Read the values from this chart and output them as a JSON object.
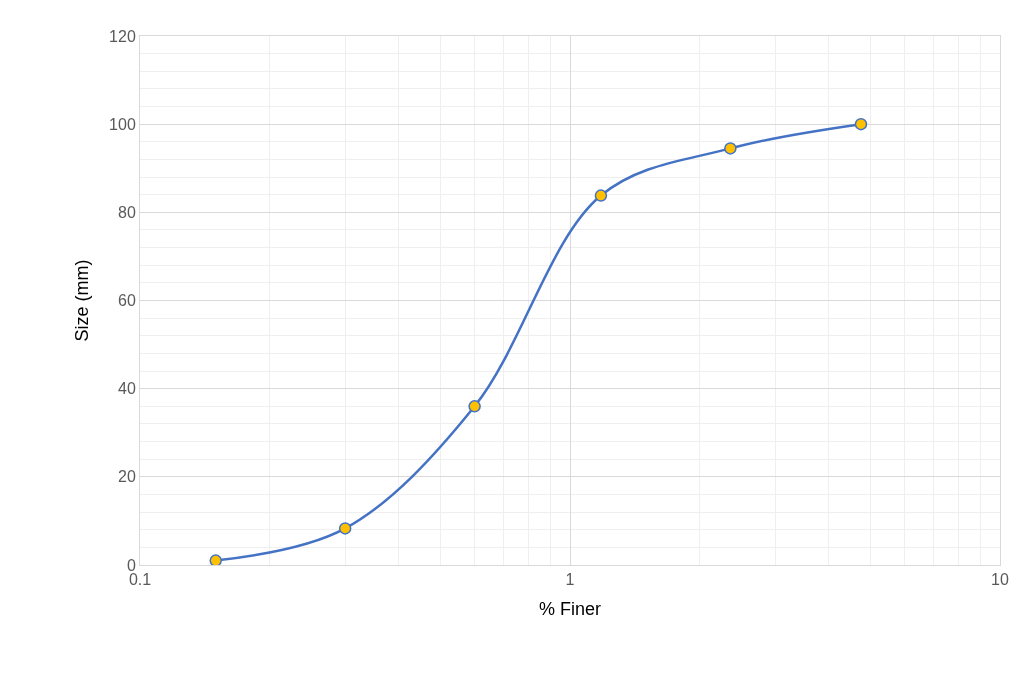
{
  "chart_data": {
    "type": "line",
    "xlabel": "% Finer",
    "ylabel": "Size (mm)",
    "log": "x",
    "grid": true,
    "marker": "circle",
    "line_style": "solid",
    "legend": false,
    "x": [
      0.15,
      0.3,
      0.6,
      1.18,
      2.36,
      4.75
    ],
    "series": [
      {
        "color": "#4472c4",
        "colors": [
          "#ffc000",
          "#ffc000",
          "#ffc000",
          "#ffc000",
          "#ffc000",
          "#ffc000"
        ],
        "values": [
          1,
          8.3,
          36,
          83.8,
          94.5,
          100
        ]
      }
    ],
    "xlim": [
      0.1,
      10
    ],
    "xticks": [
      0.1,
      1,
      10
    ],
    "ylim": [
      0,
      120
    ],
    "yticks": [
      0,
      20,
      40,
      60,
      80,
      100,
      120
    ]
  }
}
